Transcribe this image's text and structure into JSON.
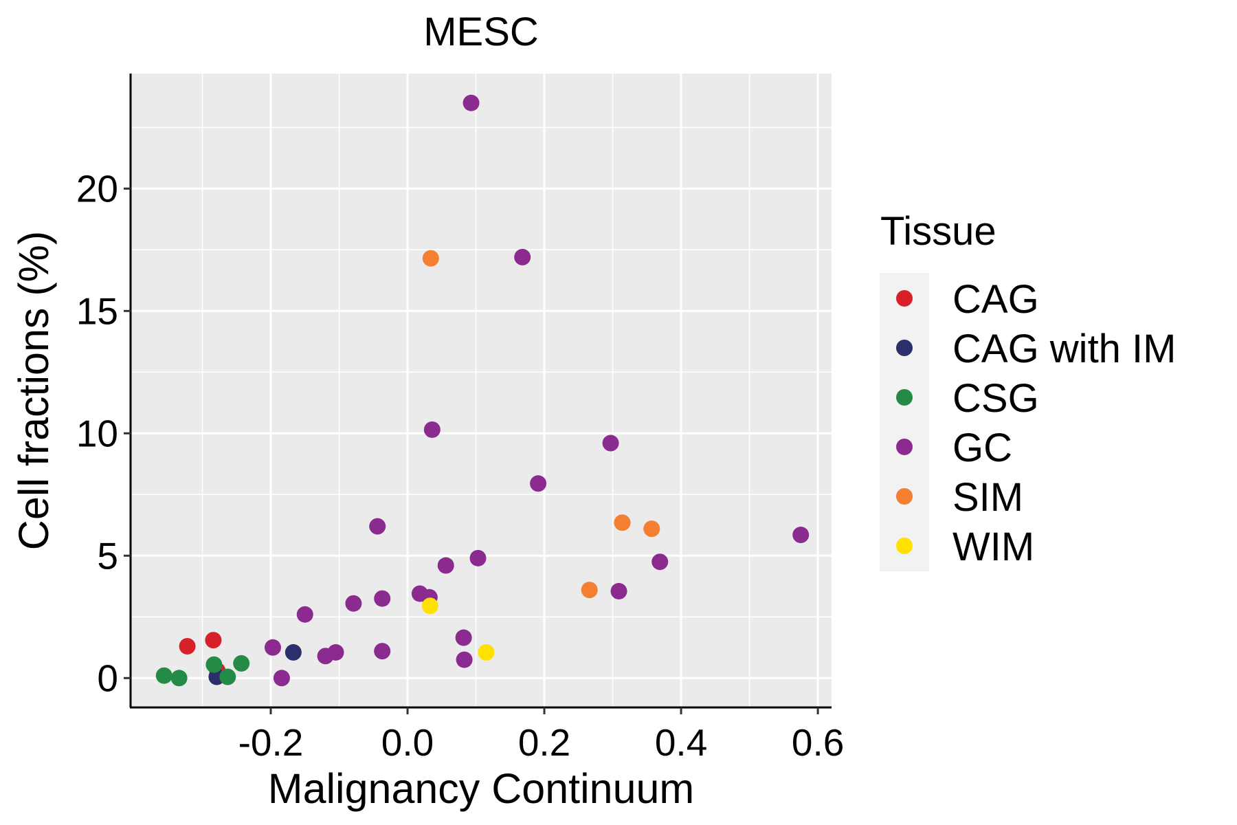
{
  "chart_data": {
    "type": "scatter",
    "title": "MESC",
    "xlabel": "Malignancy Continuum",
    "ylabel": "Cell fractions (%)",
    "xlim": [
      -0.405,
      0.62
    ],
    "ylim": [
      -1.2,
      24.7
    ],
    "xticks": [
      -0.2,
      0.0,
      0.2,
      0.4,
      0.6
    ],
    "xtick_labels": [
      "-0.2",
      "0.0",
      "0.2",
      "0.4",
      "0.6"
    ],
    "yticks": [
      0,
      5,
      10,
      15,
      20
    ],
    "ytick_labels": [
      "0",
      "5",
      "10",
      "15",
      "20"
    ],
    "grid": true,
    "legend": {
      "title": "Tissue",
      "position": "right"
    },
    "series": [
      {
        "name": "CAG",
        "color": "#d7202a",
        "points": [
          [
            -0.322,
            1.3
          ],
          [
            -0.284,
            1.55
          ],
          [
            -0.278,
            0.3
          ]
        ]
      },
      {
        "name": "CAG with IM",
        "color": "#2b2f6b",
        "points": [
          [
            -0.167,
            1.05
          ],
          [
            -0.279,
            0.05
          ]
        ]
      },
      {
        "name": "CSG",
        "color": "#238b45",
        "points": [
          [
            -0.356,
            0.1
          ],
          [
            -0.334,
            0.0
          ],
          [
            -0.283,
            0.55
          ],
          [
            -0.263,
            0.05
          ],
          [
            -0.243,
            0.6
          ]
        ]
      },
      {
        "name": "GC",
        "color": "#8b2a8f",
        "points": [
          [
            0.093,
            23.5
          ],
          [
            0.168,
            17.2
          ],
          [
            0.036,
            10.15
          ],
          [
            0.297,
            9.6
          ],
          [
            0.191,
            7.95
          ],
          [
            -0.044,
            6.2
          ],
          [
            0.575,
            5.85
          ],
          [
            0.103,
            4.9
          ],
          [
            0.369,
            4.75
          ],
          [
            0.056,
            4.6
          ],
          [
            0.309,
            3.55
          ],
          [
            0.018,
            3.45
          ],
          [
            0.032,
            3.3
          ],
          [
            -0.037,
            3.25
          ],
          [
            -0.079,
            3.05
          ],
          [
            -0.15,
            2.6
          ],
          [
            0.082,
            1.65
          ],
          [
            -0.197,
            1.25
          ],
          [
            -0.105,
            1.05
          ],
          [
            -0.12,
            0.9
          ],
          [
            -0.037,
            1.1
          ],
          [
            0.083,
            0.75
          ],
          [
            -0.184,
            0.0
          ]
        ]
      },
      {
        "name": "SIM",
        "color": "#f47f30",
        "points": [
          [
            0.034,
            17.15
          ],
          [
            0.314,
            6.35
          ],
          [
            0.357,
            6.1
          ],
          [
            0.266,
            3.6
          ]
        ]
      },
      {
        "name": "WIM",
        "color": "#ffe100",
        "points": [
          [
            0.033,
            2.95
          ],
          [
            0.115,
            1.05
          ]
        ]
      }
    ]
  }
}
